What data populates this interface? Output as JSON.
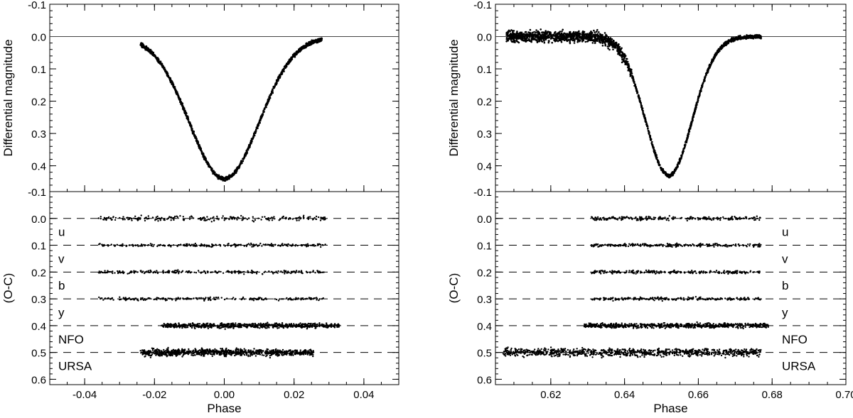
{
  "chart_data": [
    {
      "type": "scatter",
      "title": "",
      "xlabel": "Phase",
      "xlim": [
        -0.05,
        0.05
      ],
      "xticks": [
        "-0.04",
        "-0.02",
        "0.00",
        "0.02",
        "0.04"
      ],
      "xtick_values": [
        -0.04,
        -0.02,
        0.0,
        0.02,
        0.04
      ],
      "top_panel": {
        "ylabel": "Differential magnitude",
        "ylim": [
          -0.1,
          0.48
        ],
        "y_inverted": true,
        "yticks": [
          "-0.1",
          "0.0",
          "0.1",
          "0.2",
          "0.3",
          "0.4"
        ],
        "ytick_values": [
          -0.1,
          0.0,
          0.1,
          0.2,
          0.3,
          0.4
        ],
        "reference_line": 0.0,
        "eclipse": {
          "center": 0.0,
          "depth": 0.44,
          "half_width": 0.0095,
          "start": -0.024,
          "end": 0.028
        }
      },
      "bottom_panel": {
        "ylabel": "(O-C)",
        "ylim": [
          -0.1,
          0.62
        ],
        "y_inverted": true,
        "yticks": [
          "-0.1",
          "0.0",
          "0.1",
          "0.2",
          "0.3",
          "0.4",
          "0.5",
          "0.6"
        ],
        "ytick_values": [
          -0.1,
          0.0,
          0.1,
          0.2,
          0.3,
          0.4,
          0.5,
          0.6
        ],
        "label_side": "left",
        "series": [
          {
            "name": "u",
            "offset": 0.0,
            "x_range": [
              -0.036,
              0.029
            ],
            "scatter": 0.006
          },
          {
            "name": "v",
            "offset": 0.1,
            "x_range": [
              -0.036,
              0.029
            ],
            "scatter": 0.004
          },
          {
            "name": "b",
            "offset": 0.2,
            "x_range": [
              -0.036,
              0.029
            ],
            "scatter": 0.004
          },
          {
            "name": "y",
            "offset": 0.3,
            "x_range": [
              -0.036,
              0.029
            ],
            "scatter": 0.004
          },
          {
            "name": "NFO",
            "offset": 0.4,
            "x_range": [
              -0.018,
              0.033
            ],
            "scatter": 0.006
          },
          {
            "name": "URSA",
            "offset": 0.5,
            "x_range": [
              -0.024,
              0.026
            ],
            "scatter": 0.009
          }
        ]
      }
    },
    {
      "type": "scatter",
      "title": "",
      "xlabel": "Phase",
      "xlim": [
        0.605,
        0.7
      ],
      "xticks": [
        "0.62",
        "0.64",
        "0.66",
        "0.68",
        "0.70"
      ],
      "xtick_values": [
        0.62,
        0.64,
        0.66,
        0.68,
        0.7
      ],
      "top_panel": {
        "ylabel": "Differential magnitude",
        "ylim": [
          -0.1,
          0.48
        ],
        "y_inverted": true,
        "yticks": [
          "-0.1",
          "0.0",
          "0.1",
          "0.2",
          "0.3",
          "0.4"
        ],
        "ytick_values": [
          -0.1,
          0.0,
          0.1,
          0.2,
          0.3,
          0.4
        ],
        "reference_line": 0.0,
        "eclipse": {
          "center": 0.652,
          "depth": 0.43,
          "half_width": 0.006,
          "start": 0.608,
          "end": 0.677
        }
      },
      "bottom_panel": {
        "ylabel": "(O-C)",
        "ylim": [
          -0.1,
          0.62
        ],
        "y_inverted": true,
        "yticks": [
          "-0.1",
          "0.0",
          "0.1",
          "0.2",
          "0.3",
          "0.4",
          "0.5",
          "0.6"
        ],
        "ytick_values": [
          -0.1,
          0.0,
          0.1,
          0.2,
          0.3,
          0.4,
          0.5,
          0.6
        ],
        "label_side": "right",
        "series": [
          {
            "name": "u",
            "offset": 0.0,
            "x_range": [
              0.631,
              0.677
            ],
            "scatter": 0.005
          },
          {
            "name": "v",
            "offset": 0.1,
            "x_range": [
              0.631,
              0.677
            ],
            "scatter": 0.004
          },
          {
            "name": "b",
            "offset": 0.2,
            "x_range": [
              0.631,
              0.677
            ],
            "scatter": 0.004
          },
          {
            "name": "y",
            "offset": 0.3,
            "x_range": [
              0.631,
              0.677
            ],
            "scatter": 0.004
          },
          {
            "name": "NFO",
            "offset": 0.4,
            "x_range": [
              0.629,
              0.679
            ],
            "scatter": 0.006
          },
          {
            "name": "URSA",
            "offset": 0.5,
            "x_range": [
              0.607,
              0.677
            ],
            "scatter": 0.01
          }
        ]
      }
    }
  ]
}
